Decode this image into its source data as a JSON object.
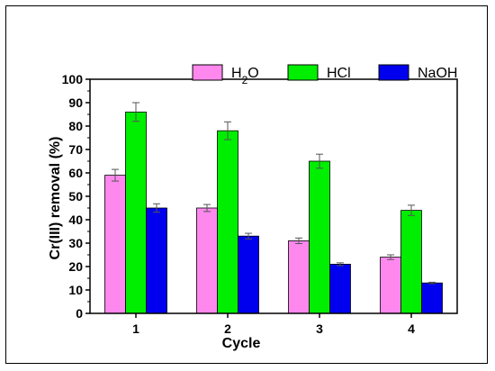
{
  "chart_data": {
    "type": "bar",
    "xlabel": "Cycle",
    "ylabel": "Cr(III) removal (%)",
    "categories": [
      "1",
      "2",
      "3",
      "4"
    ],
    "ylim": [
      0,
      100
    ],
    "yticks": [
      0,
      10,
      20,
      30,
      40,
      50,
      60,
      70,
      80,
      90,
      100
    ],
    "legend_position": "top-right",
    "series": [
      {
        "name": "H2O",
        "legend_base": "H",
        "legend_sub": "2",
        "legend_tail": "O",
        "color": "#ff88ee",
        "values": [
          59,
          45,
          31,
          24
        ],
        "errors": [
          2.5,
          1.5,
          1.2,
          1.0
        ]
      },
      {
        "name": "HCl",
        "color": "#00ee00",
        "values": [
          86,
          78,
          65,
          44
        ],
        "errors": [
          4.0,
          3.8,
          3.0,
          2.2
        ]
      },
      {
        "name": "NaOH",
        "color": "#0000ee",
        "values": [
          45,
          33,
          21,
          13
        ],
        "errors": [
          1.8,
          1.2,
          0.6,
          0.3
        ]
      }
    ]
  }
}
